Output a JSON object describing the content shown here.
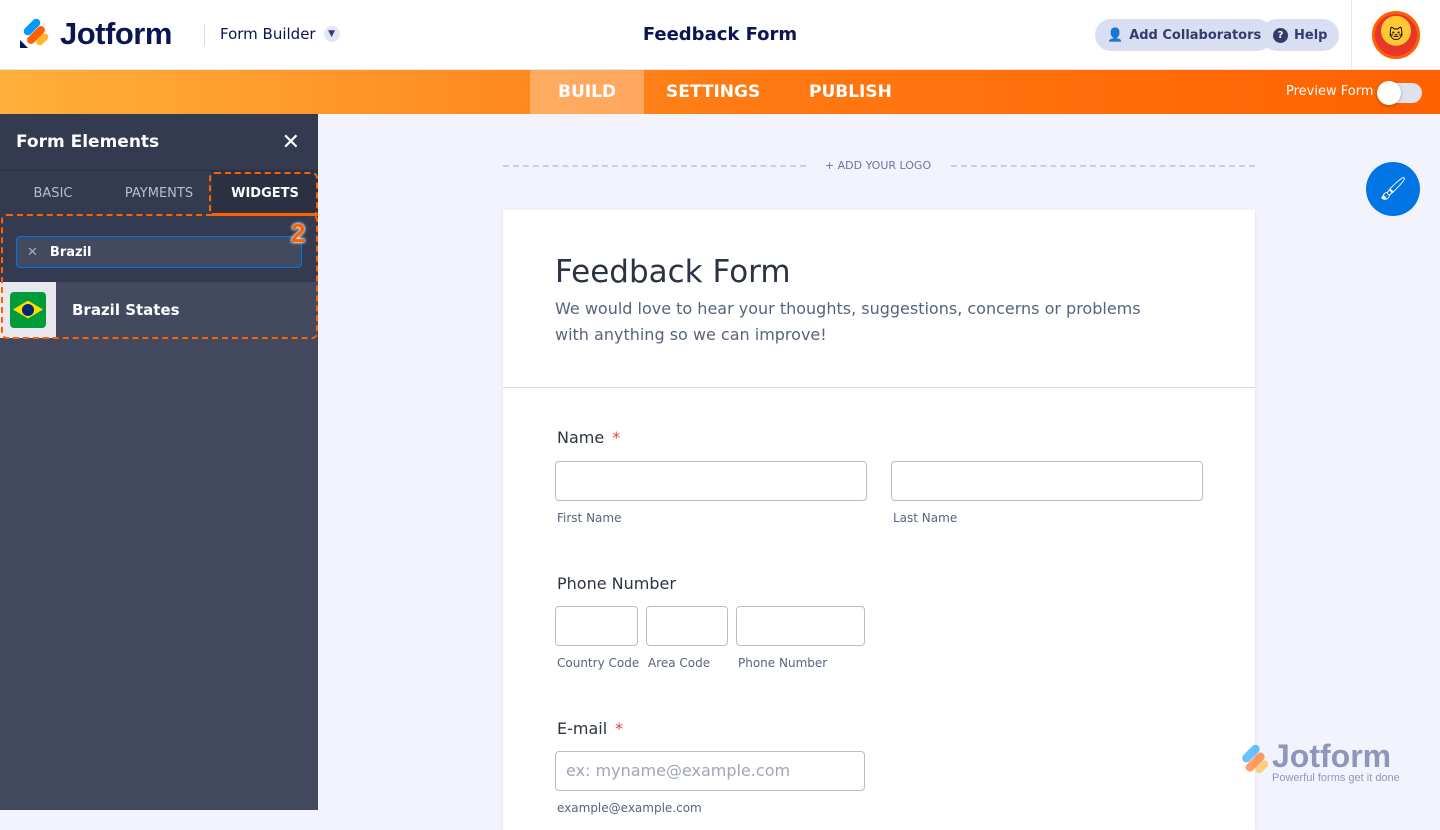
{
  "header": {
    "brand": "Jotform",
    "builder_label": "Form Builder",
    "title": "Feedback Form",
    "add_collaborators": "Add Collaborators",
    "help": "Help"
  },
  "nav": {
    "tabs": [
      {
        "label": "BUILD",
        "active": true
      },
      {
        "label": "SETTINGS"
      },
      {
        "label": "PUBLISH"
      }
    ],
    "preview_label": "Preview Form",
    "preview_on": false
  },
  "sidebar": {
    "title": "Form Elements",
    "tabs": [
      "BASIC",
      "PAYMENTS",
      "WIDGETS"
    ],
    "active_tab": "WIDGETS",
    "search_value": "Brazil",
    "results": [
      {
        "label": "Brazil States",
        "icon": "brazil-flag-icon"
      }
    ],
    "annotation": "2"
  },
  "canvas": {
    "add_logo": "+ ADD YOUR LOGO"
  },
  "form": {
    "title": "Feedback Form",
    "description": "We would love to hear your thoughts, suggestions, concerns or problems with anything so we can improve!",
    "name": {
      "label": "Name",
      "required": "*",
      "first": "First Name",
      "last": "Last Name"
    },
    "phone": {
      "label": "Phone Number",
      "country": "Country Code",
      "area": "Area Code",
      "number": "Phone Number"
    },
    "email": {
      "label": "E-mail",
      "required": "*",
      "placeholder": "ex: myname@example.com",
      "sublabel": "example@example.com"
    }
  },
  "watermark": {
    "brand": "Jotform",
    "tagline": "Powerful forms get it done"
  },
  "colors": {
    "accent": "#ff6100",
    "primary": "#0075e3",
    "sidebar": "#434a60"
  }
}
